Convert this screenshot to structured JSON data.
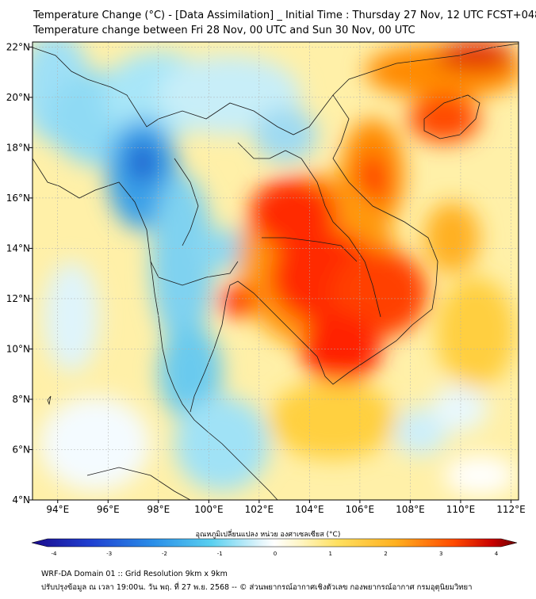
{
  "header": {
    "title_line1": "Temperature Change (°C) - [Data Assimilation] _ Initial Time : Thursday 27 Nov, 12 UTC FCST+048",
    "title_line2": "Temperature change between Fri 28 Nov, 00 UTC and Sun 30 Nov, 00 UTC"
  },
  "map": {
    "lon_ticks": [
      "94°E",
      "96°E",
      "98°E",
      "100°E",
      "102°E",
      "104°E",
      "106°E",
      "108°E",
      "110°E",
      "112°E"
    ],
    "lat_ticks": [
      "22°N",
      "20°N",
      "18°N",
      "16°N",
      "14°N",
      "12°N",
      "10°N",
      "8°N",
      "6°N",
      "4°N"
    ],
    "lon_values": [
      94,
      96,
      98,
      100,
      102,
      104,
      106,
      108,
      110,
      112
    ],
    "lat_values": [
      22,
      20,
      18,
      16,
      14,
      12,
      10,
      8,
      6,
      4
    ],
    "lon_range": [
      93,
      112.3
    ],
    "lat_range": [
      4,
      22.2
    ],
    "grid": true
  },
  "colorbar": {
    "label": "อุณหภูมิเปลี่ยนแปลง หน่วย องศาเซลเซียส (°C)",
    "ticks": [
      "-4",
      "-3",
      "-2",
      "-1",
      "0",
      "1",
      "2",
      "3",
      "4"
    ],
    "range": [
      -4,
      4
    ],
    "colors": {
      "cold_extreme": "#1a0a8c",
      "cold": "#1e6ed8",
      "cool": "#5ad0f0",
      "neutral": "#ffffff",
      "warm": "#ffe060",
      "hot": "#ff8a00",
      "hot_extreme": "#d40000",
      "max": "#6a0000"
    }
  },
  "footer": {
    "line1": "WRF-DA Domain 01 :: Grid Resolution 9km x 9km",
    "line2": "ปรับปรุงข้อมูล ณ เวลา 19:00น. วัน พฤ. ที่ 27 พ.ย. 2568 -- © ส่วนพยากรณ์อากาศเชิงตัวเลข กองพยากรณ์อากาศ กรมอุตุนิยมวิทยา"
  }
}
